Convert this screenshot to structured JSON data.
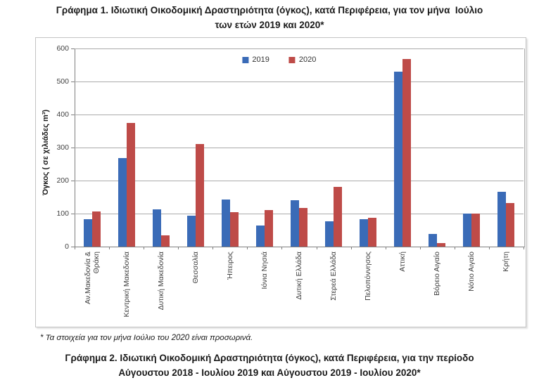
{
  "page": {
    "title1": "Γράφημα 1. Ιδιωτική Οικοδομική Δραστηριότητα (όγκος), κατά Περιφέρεια, για τον μήνα  Ιούλιο\nτων ετών 2019 και 2020*",
    "footnote": "* Τα στοιχεία για τον μήνα Ιούλιο του 2020 είναι προσωρινά.",
    "title2": "Γράφημα 2. Ιδιωτική Οικοδομική Δραστηριότητα (όγκος), κατά Περιφέρεια, για την περίοδο\nΑύγουστου 2018 - Ιουλίου 2019 και Αύγουστου 2019 - Ιουλίου 2020*"
  },
  "chart_data": {
    "type": "bar",
    "title": "Γράφημα 1. Ιδιωτική Οικοδομική Δραστηριότητα (όγκος), κατά Περιφέρεια, για τον μήνα Ιούλιο των ετών 2019 και 2020*",
    "ylabel": "Όγκος ( σε χιλιάδες  m³)",
    "xlabel": "",
    "ylim": [
      0,
      600
    ],
    "ytick_step": 100,
    "grid": true,
    "legend_position": "top-center",
    "categories": [
      "Αν.Μακεδονία &\nΘράκη",
      "Κεντρική Μακεδονία",
      "Δυτική Μακεδονία",
      "Θεσσαλία",
      "Ήπειρος",
      "Ιόνια Νησιά",
      "Δυτική Ελλάδα",
      "Στερεά Ελλάδα",
      "Πελοπόννησος",
      "Αττική",
      "Βόρειο Αιγαίο",
      "Νότιο Αιγαίο",
      "Κρήτη"
    ],
    "series": [
      {
        "name": "2019",
        "color": "#3a6bb7",
        "values": [
          84,
          268,
          113,
          94,
          143,
          63,
          141,
          76,
          84,
          530,
          39,
          100,
          165
        ]
      },
      {
        "name": "2020",
        "color": "#be4b48",
        "values": [
          107,
          375,
          33,
          310,
          105,
          111,
          116,
          181,
          87,
          568,
          10,
          100,
          132
        ]
      }
    ]
  }
}
